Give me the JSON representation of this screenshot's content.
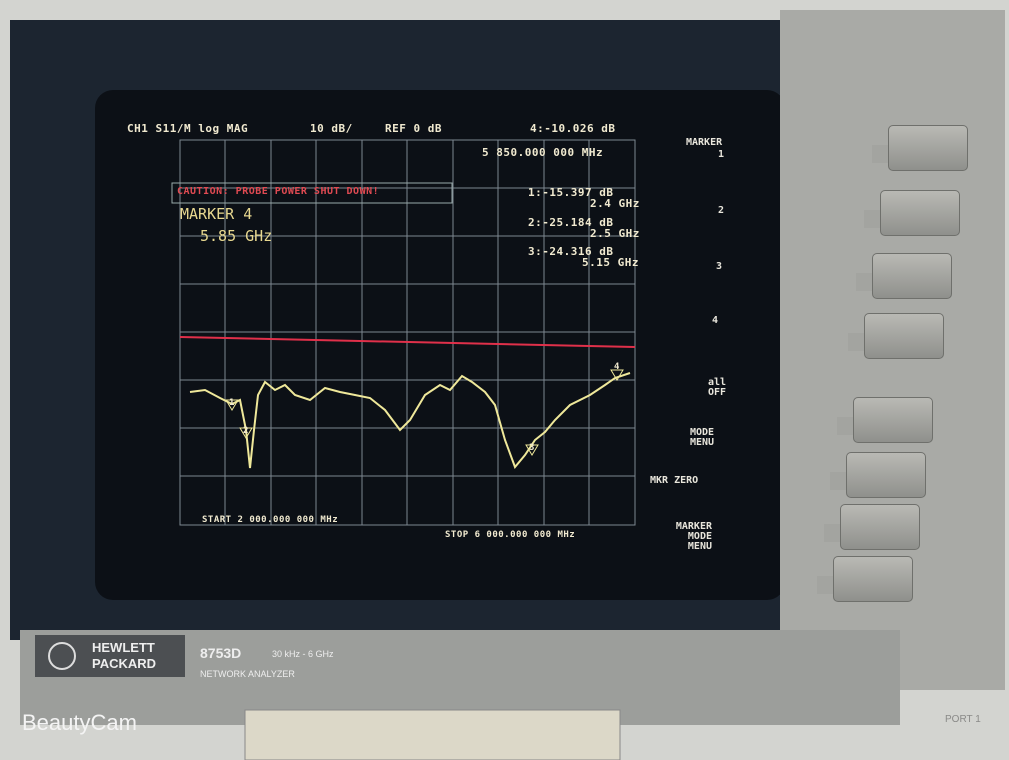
{
  "screen": {
    "header": {
      "channel": "CH1 S11/M log MAG",
      "scale": "10 dB/",
      "reference": "REF 0 dB",
      "active_marker": "4:-10.026 dB",
      "active_frequency": "5 850.000 000 MHz"
    },
    "warning": "CAUTION: PROBE POWER SHUT DOWN!",
    "marker_readout": {
      "label": "MARKER 4",
      "value": "5.85 GHz"
    },
    "markers": [
      {
        "value": "1:-15.397 dB",
        "frequency": "2.4 GHz"
      },
      {
        "value": "2:-25.184 dB",
        "frequency": "2.5 GHz"
      },
      {
        "value": "3:-24.316 dB",
        "frequency": "5.15 GHz"
      }
    ],
    "trace_labels": [
      "1",
      "2",
      "3",
      "4"
    ],
    "start": "START 2 000.000 000 MHz",
    "stop": "STOP 6 000.000 000 MHz",
    "softkeys": {
      "title": "MARKER",
      "items": [
        "1",
        "2",
        "3",
        "4",
        "all OFF",
        "MODE MENU",
        "MKR ZERO",
        "MARKER MODE MENU"
      ]
    }
  },
  "instrument": {
    "brand": "HEWLETT PACKARD",
    "model": "8753D",
    "range": "30 kHz - 6 GHz",
    "description": "NETWORK ANALYZER",
    "port": "PORT 1"
  },
  "watermark": "BeautyCam"
}
